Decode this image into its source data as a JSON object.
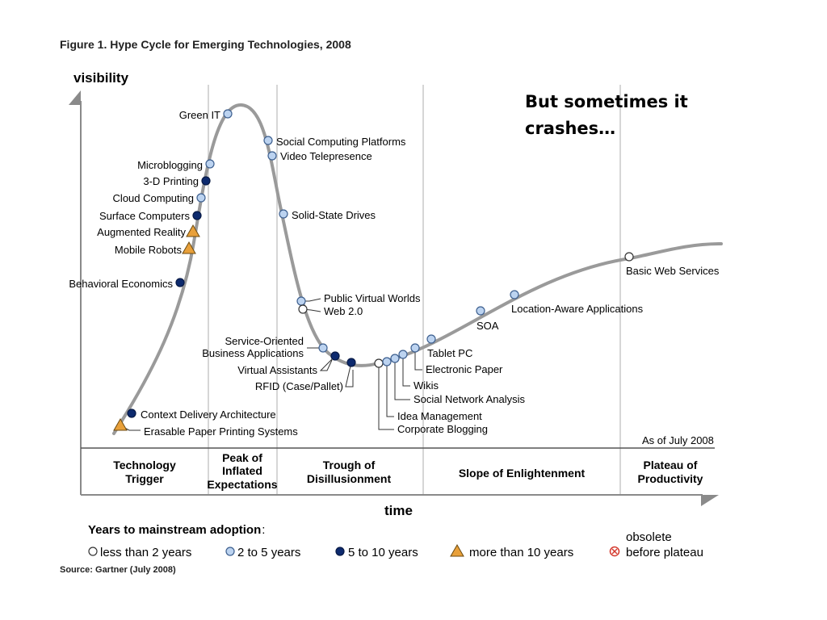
{
  "callout": {
    "line1": "But sometimes it",
    "line2": "crashes…"
  },
  "colors": {
    "curve": "#9a9a9a",
    "divider": "#d6d6d6",
    "light_blue": "#bcd3f0",
    "dark_blue": "#0d2a6e",
    "orange": "#e8a03a",
    "white": "#ffffff",
    "obsolete": "#d4382c",
    "point_stroke": "#3d5f8f"
  },
  "chart_data": {
    "type": "scatter",
    "title": "Figure 1. Hype Cycle for Emerging Technologies, 2008",
    "ylabel": "visibility",
    "xlabel": "time",
    "as_of": "As of July 2008",
    "source": "Source: Gartner (July 2008)",
    "phases": [
      {
        "line1": "Technology",
        "line2": "Trigger",
        "line3": ""
      },
      {
        "line1": "Peak of",
        "line2": "Inflated",
        "line3": "Expectations"
      },
      {
        "line1": "Trough of",
        "line2": "Disillusionment",
        "line3": ""
      },
      {
        "line1": "Slope of Enlightenment",
        "line2": "",
        "line3": ""
      },
      {
        "line1": "Plateau of",
        "line2": "Productivity",
        "line3": ""
      }
    ],
    "legend": {
      "title": "Years to mainstream adoption",
      "items": [
        {
          "marker": "hollow-circle",
          "label": "less than 2 years"
        },
        {
          "marker": "light-circle",
          "label": "2 to 5 years"
        },
        {
          "marker": "dark-circle",
          "label": "5 to 10 years"
        },
        {
          "marker": "triangle",
          "label": "more than 10 years"
        },
        {
          "marker": "obsolete",
          "label_line1": "obsolete",
          "label_line2": "before plateau"
        }
      ]
    },
    "technologies": [
      {
        "name": "Erasable Paper Printing Systems",
        "category": "more than 10 years"
      },
      {
        "name": "Context Delivery Architecture",
        "category": "5 to 10 years"
      },
      {
        "name": "Behavioral Economics",
        "category": "5 to 10 years"
      },
      {
        "name": "Mobile Robots",
        "category": "more than 10 years"
      },
      {
        "name": "Augmented Reality",
        "category": "more than 10 years"
      },
      {
        "name": "Surface Computers",
        "category": "5 to 10 years"
      },
      {
        "name": "Cloud Computing",
        "category": "2 to 5 years"
      },
      {
        "name": "3-D Printing",
        "category": "5 to 10 years"
      },
      {
        "name": "Microblogging",
        "category": "2 to 5 years"
      },
      {
        "name": "Green IT",
        "category": "2 to 5 years"
      },
      {
        "name": "Social Computing Platforms",
        "category": "2 to 5 years"
      },
      {
        "name": "Video Telepresence",
        "category": "2 to 5 years"
      },
      {
        "name": "Solid-State Drives",
        "category": "2 to 5 years"
      },
      {
        "name": "Public Virtual Worlds",
        "category": "2 to 5 years"
      },
      {
        "name": "Web 2.0",
        "category": "less than 2 years"
      },
      {
        "name": "Service-Oriented Business Applications",
        "category": "2 to 5 years",
        "label_lines": [
          "Service-Oriented",
          "Business Applications"
        ]
      },
      {
        "name": "Virtual Assistants",
        "category": "5 to 10 years"
      },
      {
        "name": "RFID (Case/Pallet)",
        "category": "5 to 10 years"
      },
      {
        "name": "Corporate Blogging",
        "category": "less than 2 years"
      },
      {
        "name": "Idea Management",
        "category": "2 to 5 years"
      },
      {
        "name": "Social Network Analysis",
        "category": "2 to 5 years"
      },
      {
        "name": "Wikis",
        "category": "2 to 5 years"
      },
      {
        "name": "Electronic Paper",
        "category": "2 to 5 years"
      },
      {
        "name": "Tablet PC",
        "category": "2 to 5 years"
      },
      {
        "name": "SOA",
        "category": "2 to 5 years"
      },
      {
        "name": "Location-Aware Applications",
        "category": "2 to 5 years"
      },
      {
        "name": "Basic Web Services",
        "category": "less than 2 years"
      }
    ]
  }
}
